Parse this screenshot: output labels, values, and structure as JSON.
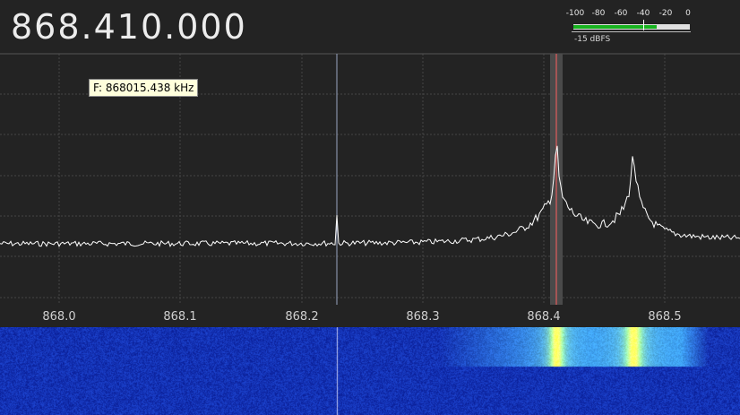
{
  "frequency_display": "868.410.000",
  "tooltip": "F: 868015.438 kHz",
  "level_meter": {
    "scale_labels": [
      "-100",
      "-80",
      "-60",
      "-40",
      "-20",
      "0"
    ],
    "readout": "-15 dBFS",
    "level_fraction": 0.84,
    "marker_fraction": 0.5,
    "fill_color": "#17b31f"
  },
  "spectrum": {
    "axis_ticks": [
      "868.0",
      "868.1",
      "868.2",
      "868.3",
      "868.4",
      "868.5"
    ],
    "trace_color": "#ffffff",
    "grid_color": "#444444",
    "tuned_marker_color": "#ff6060",
    "cursor_line_color": "#9aa4c0"
  },
  "waterfall": {
    "background_color": "#1c2fa8",
    "peak_color": "#ffff20"
  }
}
